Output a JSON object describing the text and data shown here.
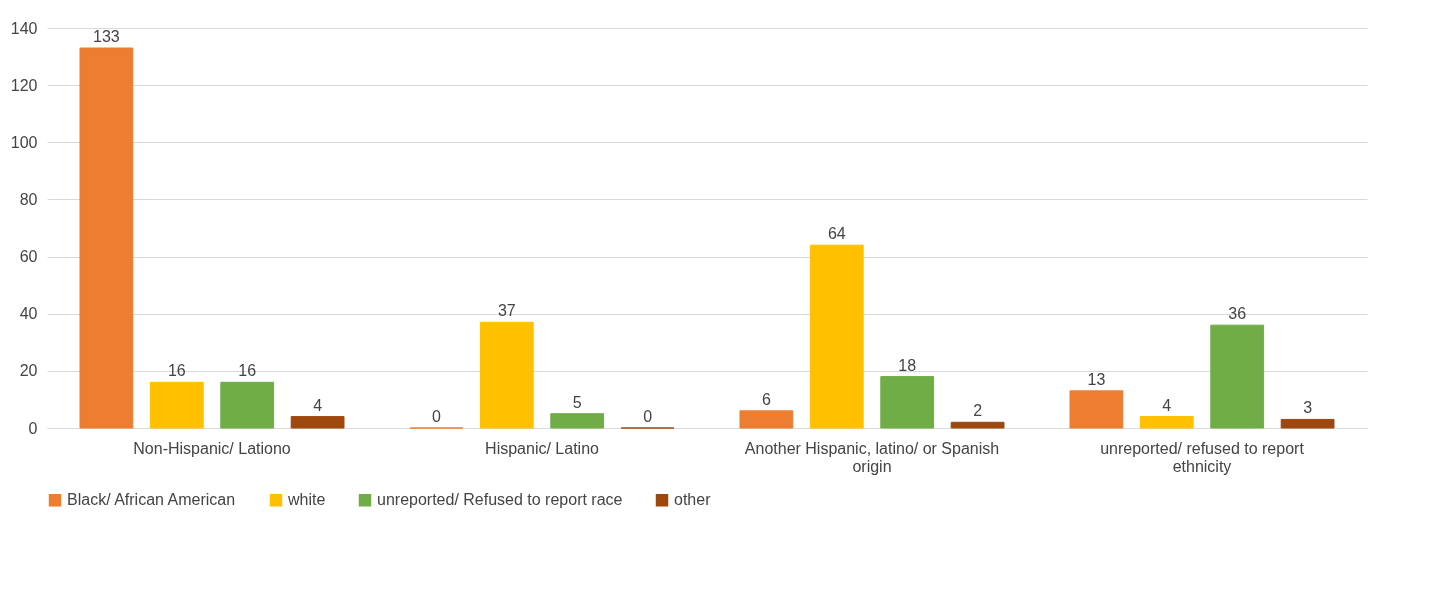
{
  "chart_data": {
    "type": "bar",
    "categories": [
      "Non-Hispanic/ Lationo",
      "Hispanic/ Latino",
      "Another Hispanic, latino/ or Spanish origin",
      "unreported/ refused to report ethnicity"
    ],
    "series": [
      {
        "name": "Black/ African American",
        "color": "#ed7d31",
        "values": [
          133,
          0,
          6,
          13
        ]
      },
      {
        "name": "white",
        "color": "#ffc000",
        "values": [
          16,
          37,
          64,
          4
        ]
      },
      {
        "name": "unreported/ Refused to report race",
        "color": "#70ad47",
        "values": [
          16,
          5,
          18,
          36
        ]
      },
      {
        "name": "other",
        "color": "#9e480e",
        "values": [
          4,
          0,
          2,
          3
        ]
      }
    ],
    "ylim": [
      0,
      140
    ],
    "yticks": [
      0,
      20,
      40,
      60,
      80,
      100,
      120,
      140
    ],
    "grid": "y",
    "legend": "bottom",
    "data_labels": true
  }
}
